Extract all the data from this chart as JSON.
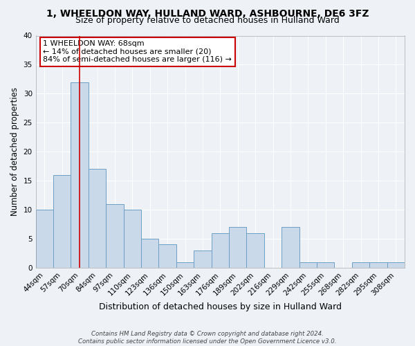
{
  "title": "1, WHEELDON WAY, HULLAND WARD, ASHBOURNE, DE6 3FZ",
  "subtitle": "Size of property relative to detached houses in Hulland Ward",
  "xlabel": "Distribution of detached houses by size in Hulland Ward",
  "ylabel": "Number of detached properties",
  "bin_labels": [
    "44sqm",
    "57sqm",
    "70sqm",
    "84sqm",
    "97sqm",
    "110sqm",
    "123sqm",
    "136sqm",
    "150sqm",
    "163sqm",
    "176sqm",
    "189sqm",
    "202sqm",
    "216sqm",
    "229sqm",
    "242sqm",
    "255sqm",
    "268sqm",
    "282sqm",
    "295sqm",
    "308sqm"
  ],
  "bar_heights": [
    10,
    16,
    32,
    17,
    11,
    10,
    5,
    4,
    1,
    3,
    6,
    7,
    6,
    0,
    7,
    1,
    1,
    0,
    1,
    1,
    1
  ],
  "bar_color": "#c9d9ea",
  "bar_edge_color": "#6b9fc4",
  "bar_edge_width": 0.7,
  "marker_index": 2,
  "marker_color": "#cc0000",
  "annotation_line1": "1 WHEELDON WAY: 68sqm",
  "annotation_line2": "← 14% of detached houses are smaller (20)",
  "annotation_line3": "84% of semi-detached houses are larger (116) →",
  "annotation_box_color": "#ffffff",
  "annotation_box_edge": "#cc0000",
  "ylim": [
    0,
    40
  ],
  "yticks": [
    0,
    5,
    10,
    15,
    20,
    25,
    30,
    35,
    40
  ],
  "title_fontsize": 10,
  "subtitle_fontsize": 9,
  "xlabel_fontsize": 9,
  "ylabel_fontsize": 8.5,
  "tick_fontsize": 7.5,
  "ann_fontsize": 8,
  "footer_line1": "Contains HM Land Registry data © Crown copyright and database right 2024.",
  "footer_line2": "Contains public sector information licensed under the Open Government Licence v3.0.",
  "bg_color": "#eef2f7",
  "plot_bg_color": "#eef2f7",
  "grid_color": "#ffffff",
  "spine_color": "#aaaaaa"
}
